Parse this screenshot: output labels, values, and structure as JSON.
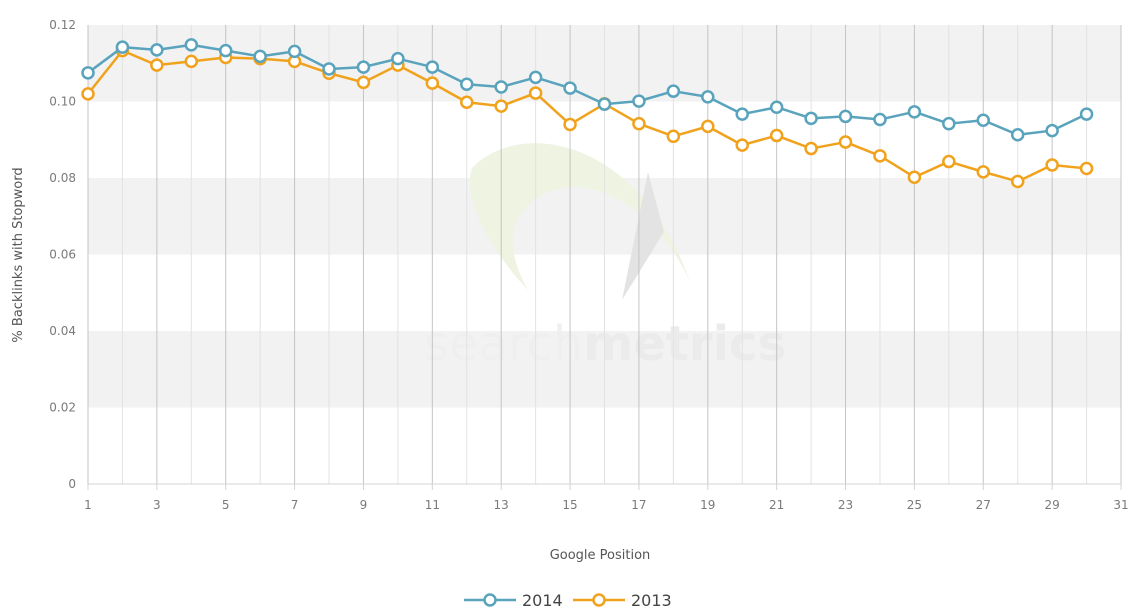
{
  "chart_data": {
    "type": "line",
    "xlabel": "Google Position",
    "ylabel": "% Backlinks with Stopword",
    "xlim": [
      1,
      31
    ],
    "ylim": [
      0,
      0.12
    ],
    "x_ticks": [
      1,
      3,
      5,
      7,
      9,
      11,
      13,
      15,
      17,
      19,
      21,
      23,
      25,
      27,
      29,
      31
    ],
    "x_tick_labels": [
      "1",
      "3",
      "5",
      "7",
      "9",
      "11",
      "13",
      "15",
      "17",
      "19",
      "21",
      "23",
      "25",
      "27",
      "29",
      "31"
    ],
    "y_ticks": [
      0,
      0.02,
      0.04,
      0.06,
      0.08,
      0.1,
      0.12
    ],
    "y_tick_labels": [
      "0",
      "0.02",
      "0.04",
      "0.06",
      "0.08",
      "0.10",
      "0.12"
    ],
    "grid": "alternating horizontal bands with vertical gridlines",
    "legend_position": "bottom-center",
    "x": [
      1,
      2,
      3,
      4,
      5,
      6,
      7,
      8,
      9,
      10,
      11,
      12,
      13,
      14,
      15,
      16,
      17,
      18,
      19,
      20,
      21,
      22,
      23,
      24,
      25,
      26,
      27,
      28,
      29,
      30
    ],
    "series": [
      {
        "name": "2014",
        "color": "#5aa3bd",
        "values": [
          0.1075,
          0.1142,
          0.1135,
          0.1148,
          0.1133,
          0.1118,
          0.1131,
          0.1085,
          0.109,
          0.1112,
          0.109,
          0.1045,
          0.1038,
          0.1063,
          0.1035,
          0.0993,
          0.1001,
          0.1027,
          0.1012,
          0.0967,
          0.0985,
          0.0956,
          0.0961,
          0.0953,
          0.0973,
          0.0942,
          0.0951,
          0.0913,
          0.0924,
          0.0967
        ]
      },
      {
        "name": "2013",
        "color": "#f1a21c",
        "values": [
          0.102,
          0.1133,
          0.1095,
          0.1105,
          0.1115,
          0.1112,
          0.1105,
          0.1074,
          0.105,
          0.1095,
          0.1048,
          0.0998,
          0.0988,
          0.1022,
          0.094,
          0.0994,
          0.0942,
          0.0909,
          0.0935,
          0.0886,
          0.0911,
          0.0877,
          0.0894,
          0.0858,
          0.0802,
          0.0843,
          0.0816,
          0.0791,
          0.0834,
          0.0825
        ]
      }
    ]
  },
  "watermark": {
    "light": "search",
    "bold": "metrics"
  },
  "colors": {
    "band": "#f2f2f2",
    "major_grid": "#c4c4c4",
    "minor_grid": "#e2e2e2",
    "axis": "#d4d4d4",
    "logo_green": "#eef3e2",
    "logo_grey": "#e3e3e3"
  }
}
